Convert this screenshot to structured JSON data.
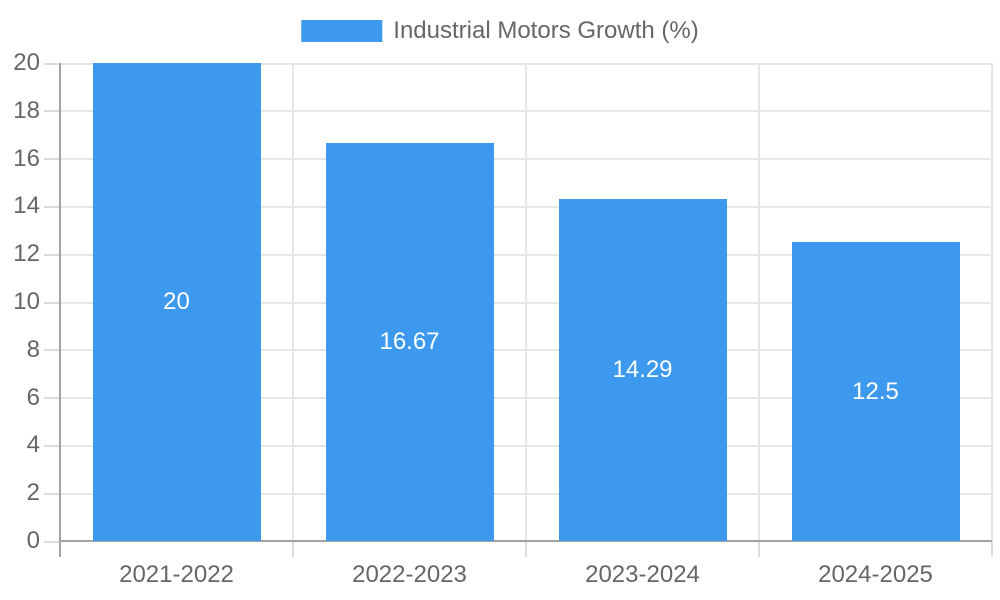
{
  "chart_data": {
    "type": "bar",
    "legend_label": "Industrial Motors Growth (%)",
    "legend_position": "top",
    "categories": [
      "2021-2022",
      "2022-2023",
      "2023-2024",
      "2024-2025"
    ],
    "values": [
      20,
      16.67,
      14.29,
      12.5
    ],
    "bar_value_labels": [
      "20",
      "16.67",
      "14.29",
      "12.5"
    ],
    "ylim": [
      0,
      20
    ],
    "ytick_step": 2,
    "ytick_labels": [
      "0",
      "2",
      "4",
      "6",
      "8",
      "10",
      "12",
      "14",
      "16",
      "18",
      "20"
    ],
    "grid": true,
    "colors": {
      "bar": "#3c99ee",
      "bar_label_text": "#ffffff",
      "axis_text": "#666666",
      "grid_line": "#e6e6e6",
      "tick_mark": "#dcdcdc",
      "axis_line": "#a3a3a3",
      "background": "#ffffff"
    }
  }
}
